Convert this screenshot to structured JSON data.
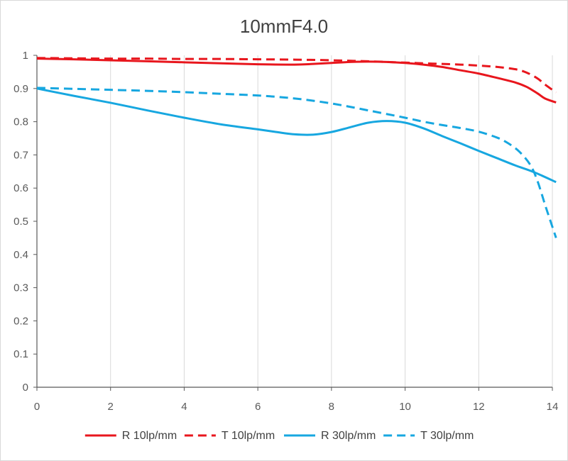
{
  "chart_data": {
    "type": "line",
    "title": "10mmF4.0",
    "xlabel": "",
    "ylabel": "",
    "xlim": [
      0,
      14
    ],
    "ylim": [
      0,
      1
    ],
    "x_ticks": [
      0,
      2,
      4,
      6,
      8,
      10,
      12,
      14
    ],
    "y_ticks": [
      0,
      0.1,
      0.2,
      0.3,
      0.4,
      0.5,
      0.6,
      0.7,
      0.8,
      0.9,
      1
    ],
    "x_tick_labels": [
      "0",
      "2",
      "4",
      "6",
      "8",
      "10",
      "12",
      "14"
    ],
    "y_tick_labels": [
      "0",
      "0.1",
      "0.2",
      "0.3",
      "0.4",
      "0.5",
      "0.6",
      "0.7",
      "0.8",
      "0.9",
      "1"
    ],
    "grid": "vertical",
    "legend_position": "bottom",
    "series": [
      {
        "name": "R 10lp/mm",
        "color": "#e8161d",
        "dash": "solid",
        "x": [
          0,
          1,
          2,
          3,
          4,
          5,
          6,
          7,
          7.5,
          8,
          8.5,
          9,
          9.5,
          10,
          10.5,
          11,
          11.5,
          12,
          12.5,
          13,
          13.3,
          13.6,
          13.8,
          14.1
        ],
        "y": [
          0.99,
          0.988,
          0.985,
          0.982,
          0.979,
          0.976,
          0.973,
          0.972,
          0.974,
          0.977,
          0.98,
          0.981,
          0.98,
          0.977,
          0.972,
          0.965,
          0.955,
          0.945,
          0.932,
          0.918,
          0.905,
          0.885,
          0.87,
          0.858
        ]
      },
      {
        "name": "T 10lp/mm",
        "color": "#e8161d",
        "dash": "dashed",
        "x": [
          0,
          1,
          2,
          3,
          4,
          5,
          6,
          7,
          8,
          9,
          10,
          10.5,
          11,
          11.5,
          12,
          12.5,
          13,
          13.3,
          13.6,
          13.8,
          14.1
        ],
        "y": [
          0.992,
          0.991,
          0.99,
          0.99,
          0.989,
          0.989,
          0.988,
          0.987,
          0.985,
          0.982,
          0.978,
          0.976,
          0.974,
          0.972,
          0.969,
          0.965,
          0.958,
          0.948,
          0.93,
          0.912,
          0.888
        ]
      },
      {
        "name": "R 30lp/mm",
        "color": "#17a7e0",
        "dash": "solid",
        "x": [
          0,
          1,
          2,
          3,
          4,
          5,
          6,
          6.5,
          7,
          7.5,
          8,
          8.5,
          9,
          9.5,
          10,
          10.5,
          11,
          11.5,
          12,
          12.5,
          13,
          13.5,
          14.1
        ],
        "y": [
          0.9,
          0.878,
          0.857,
          0.834,
          0.812,
          0.792,
          0.777,
          0.769,
          0.762,
          0.761,
          0.769,
          0.783,
          0.797,
          0.802,
          0.797,
          0.78,
          0.757,
          0.735,
          0.712,
          0.69,
          0.668,
          0.648,
          0.618
        ]
      },
      {
        "name": "T 30lp/mm",
        "color": "#17a7e0",
        "dash": "dashed",
        "x": [
          0,
          1,
          2,
          3,
          4,
          5,
          6,
          7,
          8,
          9,
          10,
          10.5,
          11,
          11.5,
          12,
          12.5,
          12.8,
          13.1,
          13.4,
          13.6,
          13.8,
          13.95,
          14.1
        ],
        "y": [
          0.902,
          0.899,
          0.896,
          0.893,
          0.889,
          0.884,
          0.879,
          0.87,
          0.855,
          0.834,
          0.812,
          0.8,
          0.79,
          0.781,
          0.77,
          0.752,
          0.735,
          0.71,
          0.67,
          0.62,
          0.55,
          0.5,
          0.45
        ]
      }
    ]
  }
}
